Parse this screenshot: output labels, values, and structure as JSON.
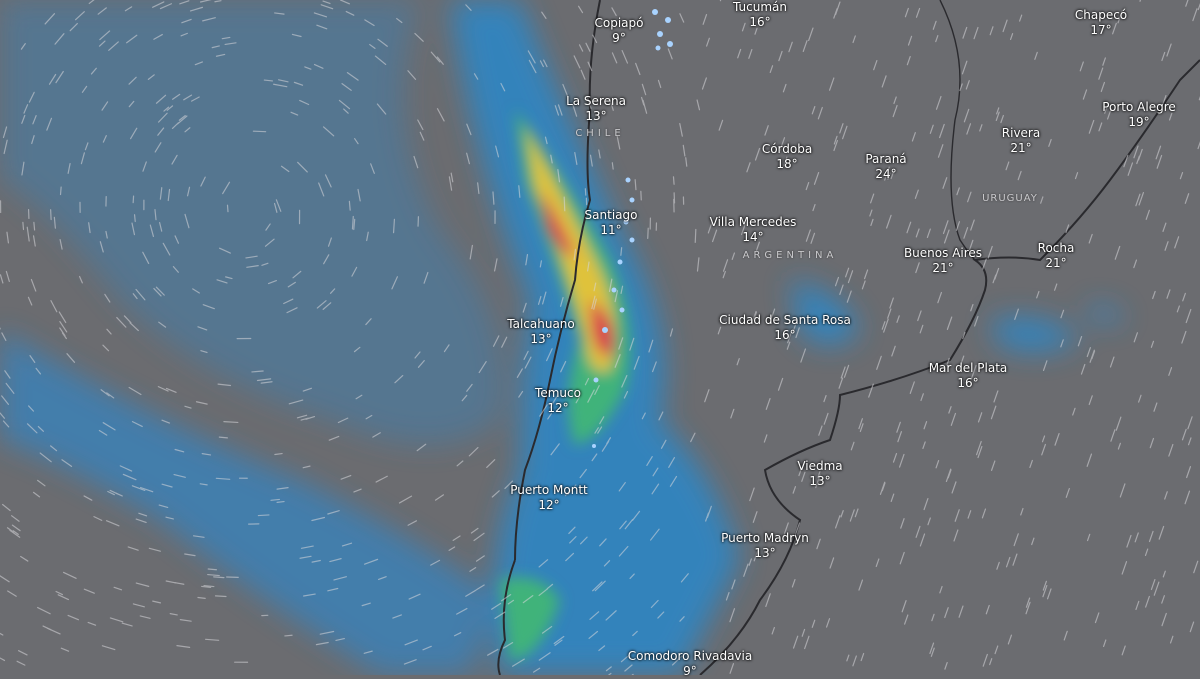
{
  "map": {
    "layer": "rain-and-wind",
    "colors": {
      "background": "#6b6c70",
      "light_rain": "#2f86c4",
      "moderate_rain": "#3fb37a",
      "heavy_rain": "#e0c23a",
      "very_heavy_rain": "#d8304f",
      "snow": "#a9d3ff",
      "coastline": "#2a2a2e"
    },
    "countries": [
      {
        "id": "chile",
        "label": "CHILE"
      },
      {
        "id": "argentina",
        "label": "ARGENTINA"
      },
      {
        "id": "uruguay",
        "label": "URUGUAY"
      }
    ],
    "cities": [
      {
        "id": "copiapo",
        "name": "Copiapó",
        "temp": "9°"
      },
      {
        "id": "tucuman",
        "name": "Tucumán",
        "temp": "16°"
      },
      {
        "id": "chapeco",
        "name": "Chapecó",
        "temp": "17°"
      },
      {
        "id": "laserena",
        "name": "La Serena",
        "temp": "13°"
      },
      {
        "id": "cordoba",
        "name": "Córdoba",
        "temp": "18°"
      },
      {
        "id": "parana",
        "name": "Paraná",
        "temp": "24°"
      },
      {
        "id": "rivera",
        "name": "Rivera",
        "temp": "21°"
      },
      {
        "id": "portoalegre",
        "name": "Porto Alegre",
        "temp": "19°"
      },
      {
        "id": "santiago",
        "name": "Santiago",
        "temp": "11°"
      },
      {
        "id": "villamercedes",
        "name": "Villa Mercedes",
        "temp": "14°"
      },
      {
        "id": "buenosaires",
        "name": "Buenos Aires",
        "temp": "21°"
      },
      {
        "id": "rocha",
        "name": "Rocha",
        "temp": "21°"
      },
      {
        "id": "talcahuano",
        "name": "Talcahuano",
        "temp": "13°"
      },
      {
        "id": "santarosa",
        "name": "Ciudad de Santa Rosa",
        "temp": "16°"
      },
      {
        "id": "mardelplata",
        "name": "Mar del Plata",
        "temp": "16°"
      },
      {
        "id": "temuco",
        "name": "Temuco",
        "temp": "12°"
      },
      {
        "id": "viedma",
        "name": "Viedma",
        "temp": "13°"
      },
      {
        "id": "puertomontt",
        "name": "Puerto Montt",
        "temp": "12°"
      },
      {
        "id": "puertomadryn",
        "name": "Puerto Madryn",
        "temp": "13°"
      },
      {
        "id": "comodoro",
        "name": "Comodoro Rivadavia",
        "temp": "9°"
      }
    ]
  }
}
